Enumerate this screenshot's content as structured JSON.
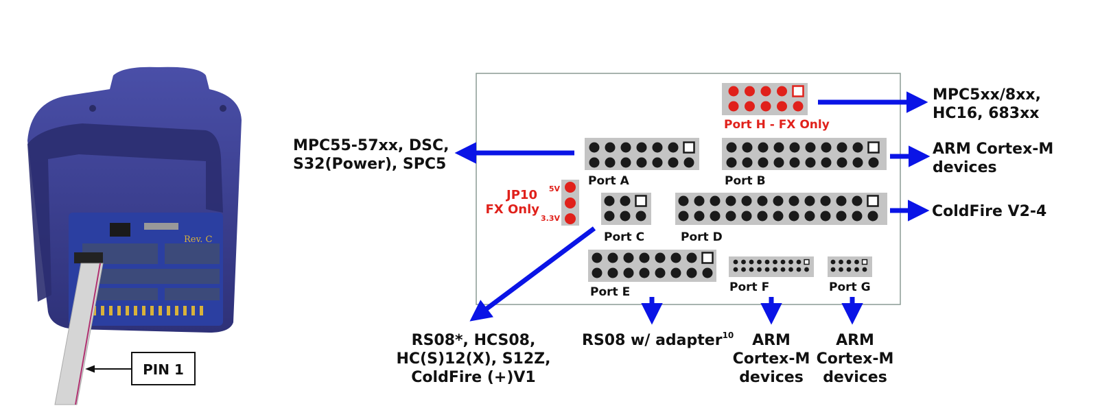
{
  "pin_label": "PIN 1",
  "board_rev": "Rev. C",
  "ports": {
    "A": "Port A",
    "B": "Port B",
    "C": "Port C",
    "D": "Port D",
    "E": "Port E",
    "F": "Port F",
    "G": "Port G",
    "H": "Port H - FX Only"
  },
  "jumper": {
    "name": "JP10",
    "note": "FX Only",
    "v5": "5V",
    "v33": "3.3V"
  },
  "targets": {
    "portH": [
      "MPC5xx/8xx,",
      "HC16, 683xx"
    ],
    "portA": [
      "MPC55-57xx, DSC,",
      "S32(Power), SPC5"
    ],
    "portB": [
      "ARM Cortex-M",
      "devices"
    ],
    "portD": [
      "ColdFire V2-4"
    ],
    "portC": [
      "RS08*, HCS08,",
      "HC(S)12(X), S12Z,",
      "ColdFire (+)V1"
    ],
    "portE": {
      "text": "RS08 w/ adapter",
      "sup": "10"
    },
    "portF": [
      "ARM",
      "Cortex-M",
      "devices"
    ],
    "portG": [
      "ARM",
      "Cortex-M",
      "devices"
    ]
  },
  "colors": {
    "arrow": "#0a14e6",
    "pin_active": "#e0211b",
    "pin": "#1a1a1a",
    "header": "#c4c4c4",
    "device_body": "#3a3d8f"
  }
}
